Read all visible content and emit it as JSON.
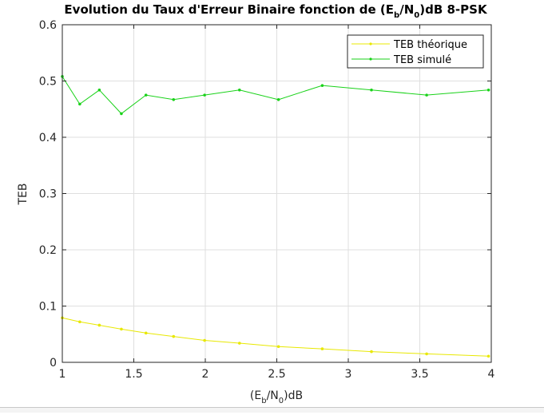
{
  "chart_data": {
    "type": "line",
    "title": {
      "main": "Evolution du Taux d'Erreur Binaire fonction de (E",
      "sub1": "b",
      "mid": "/N",
      "sub2": "0",
      "end": ")dB 8-PSK"
    },
    "xlabel": {
      "pre": "(E",
      "sub1": "b",
      "mid": "/N",
      "sub2": "0",
      "end": ")dB"
    },
    "ylabel": "TEB",
    "xlim": [
      1,
      4
    ],
    "ylim": [
      0,
      0.6
    ],
    "xticks": [
      1,
      1.5,
      2,
      2.5,
      3,
      3.5,
      4
    ],
    "xtick_labels": [
      "1",
      "1.5",
      "2",
      "2.5",
      "3",
      "3.5",
      "4"
    ],
    "yticks": [
      0,
      0.1,
      0.2,
      0.3,
      0.4,
      0.5,
      0.6
    ],
    "ytick_labels": [
      "0",
      "0.1",
      "0.2",
      "0.3",
      "0.4",
      "0.5",
      "0.6"
    ],
    "grid": true,
    "legend_position": "top-right",
    "x": [
      1.0,
      1.122,
      1.259,
      1.413,
      1.585,
      1.778,
      1.995,
      2.239,
      2.512,
      2.818,
      3.162,
      3.548,
      3.981
    ],
    "series": [
      {
        "name": "TEB théorique",
        "color": "#e8e800",
        "values": [
          0.079,
          0.072,
          0.066,
          0.059,
          0.052,
          0.046,
          0.039,
          0.034,
          0.028,
          0.024,
          0.019,
          0.015,
          0.011
        ]
      },
      {
        "name": "TEB simulé",
        "color": "#19d219",
        "values": [
          0.508,
          0.459,
          0.484,
          0.442,
          0.475,
          0.467,
          0.475,
          0.484,
          0.467,
          0.492,
          0.484,
          0.475,
          0.484
        ]
      }
    ]
  }
}
